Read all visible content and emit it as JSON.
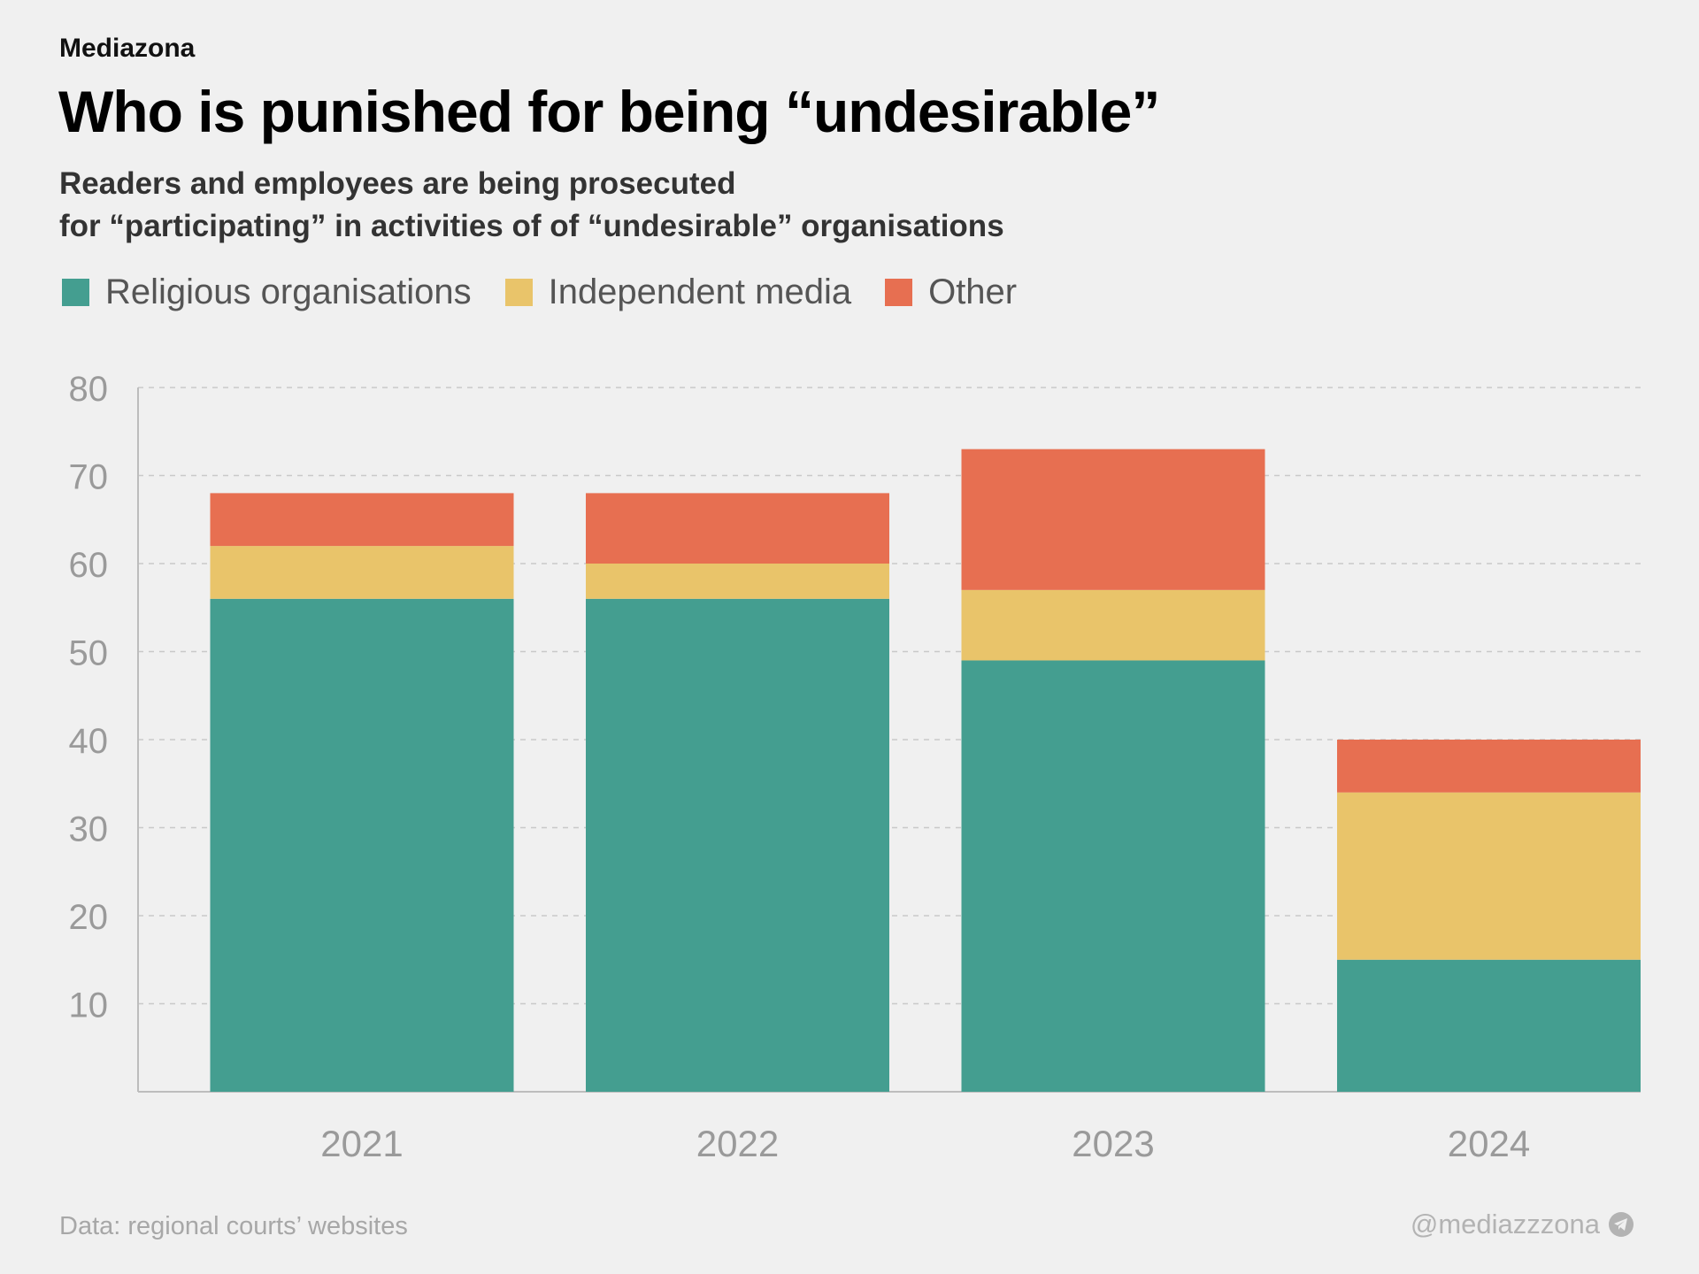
{
  "brand": "Mediazona",
  "title": "Who is punished for being “undesirable”",
  "subtitle_lines": [
    "Readers and employees are being prosecuted",
    "for “participating” in activities of of “undesirable” organisations"
  ],
  "source": "Data: regional courts’ websites",
  "handle": "@mediazzzona",
  "handle_icon": "telegram-icon",
  "chart_data": {
    "type": "bar",
    "stacked": true,
    "categories": [
      "2021",
      "2022",
      "2023",
      "2024"
    ],
    "series": [
      {
        "name": "Religious organisations",
        "color": "#449e90",
        "values": [
          56,
          56,
          49,
          15
        ]
      },
      {
        "name": "Independent media",
        "color": "#e9c46a",
        "values": [
          6,
          4,
          8,
          19
        ]
      },
      {
        "name": "Other",
        "color": "#e76f51",
        "values": [
          6,
          8,
          16,
          6
        ]
      }
    ],
    "yticks": [
      10,
      20,
      30,
      40,
      50,
      60,
      70,
      80
    ],
    "ylim": [
      0,
      80
    ],
    "grid": true,
    "legend_position": "top-left"
  }
}
